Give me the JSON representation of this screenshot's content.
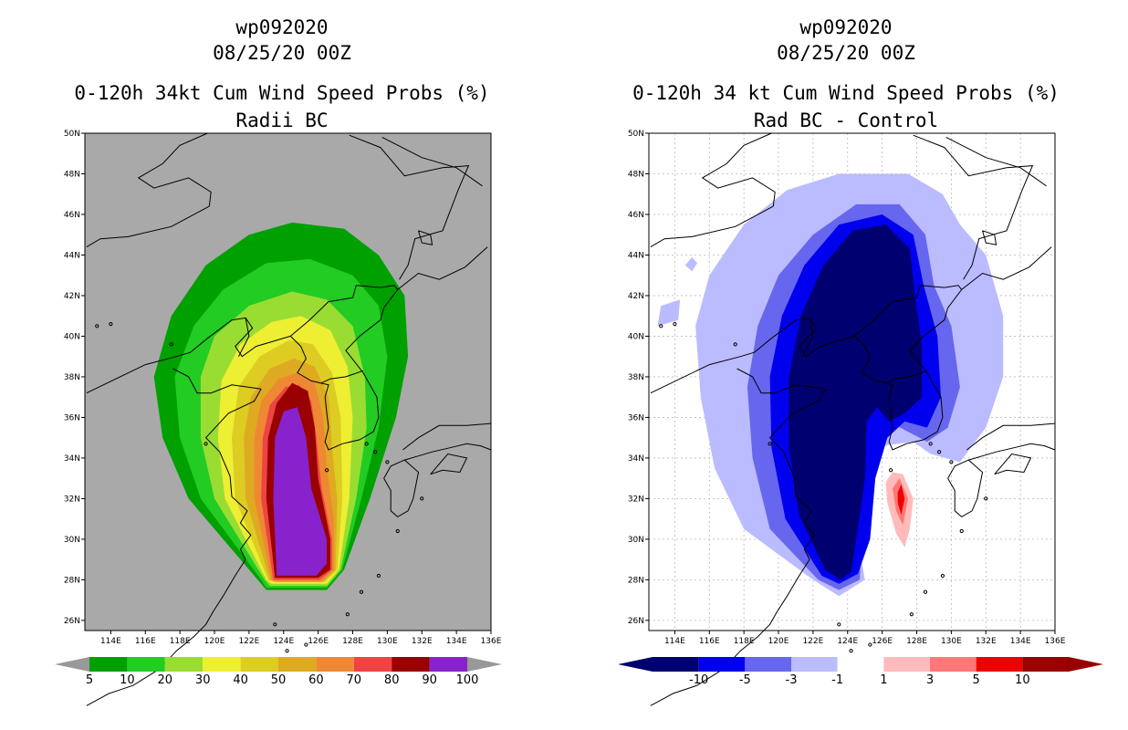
{
  "panels": [
    {
      "title_line1": "wp092020",
      "title_line2": "08/25/20 00Z",
      "title_line3": "0-120h 34kt Cum Wind Speed Probs (%)",
      "title_line4": "Radii BC"
    },
    {
      "title_line1": "wp092020",
      "title_line2": "08/25/20 00Z",
      "title_line3": "0-120h 34 kt Cum Wind Speed Probs (%)",
      "title_line4": "Rad BC - Control"
    }
  ],
  "colors": {
    "land_gray": "#a9a9a9",
    "prob_levels": [
      "#00a000",
      "#22cc22",
      "#99dd33",
      "#eeee33",
      "#ddcc22",
      "#ddaa22",
      "#ee8833",
      "#ee4444",
      "#990000",
      "#8822cc"
    ],
    "diff_levels": [
      "#000070",
      "#0000ee",
      "#6666ee",
      "#bbbbff",
      "#ffffff",
      "#ffbbbb",
      "#ff7777",
      "#ee0000",
      "#990000"
    ]
  },
  "chart_data": [
    {
      "type": "heatmap",
      "title": "0-120h 34kt Cum Wind Speed Probs (%) Radii BC",
      "subtitle": "wp092020 08/25/20 00Z",
      "xlabel": "",
      "ylabel": "",
      "xlim": [
        112.5,
        136.0
      ],
      "ylim": [
        25.5,
        50.0
      ],
      "x_ticks": [
        "114E",
        "116E",
        "118E",
        "120E",
        "122E",
        "124E",
        "126E",
        "128E",
        "130E",
        "132E",
        "134E",
        "136E"
      ],
      "y_ticks": [
        "26N",
        "28N",
        "30N",
        "32N",
        "34N",
        "36N",
        "38N",
        "40N",
        "42N",
        "44N",
        "46N",
        "48N",
        "50N"
      ],
      "colorbar_labels": [
        "5",
        "10",
        "20",
        "30",
        "40",
        "50",
        "60",
        "70",
        "80",
        "90",
        "100"
      ],
      "contour_levels": [
        5,
        10,
        20,
        30,
        40,
        50,
        60,
        70,
        80,
        90,
        100
      ],
      "max_probability_region": "28N-36.5N, 123.5E-128E (100%)"
    },
    {
      "type": "heatmap",
      "title": "0-120h 34 kt Cum Wind Speed Probs (%) Rad BC - Control",
      "subtitle": "wp092020 08/25/20 00Z",
      "xlabel": "",
      "ylabel": "",
      "xlim": [
        112.5,
        136.0
      ],
      "ylim": [
        25.5,
        50.0
      ],
      "x_ticks": [
        "114E",
        "116E",
        "118E",
        "120E",
        "122E",
        "124E",
        "126E",
        "128E",
        "130E",
        "132E",
        "134E",
        "136E"
      ],
      "y_ticks": [
        "26N",
        "28N",
        "30N",
        "32N",
        "34N",
        "36N",
        "38N",
        "40N",
        "42N",
        "44N",
        "46N",
        "48N",
        "50N"
      ],
      "colorbar_labels": [
        "-10",
        "-5",
        "-3",
        "-1",
        "1",
        "3",
        "5",
        "10"
      ],
      "contour_levels": [
        -10,
        -5,
        -3,
        -1,
        1,
        3,
        5,
        10
      ],
      "max_negative_region": "28N-46N, 120E-129E (< -10)",
      "max_positive_region": "30N-33N, 127E (> 5)"
    }
  ]
}
